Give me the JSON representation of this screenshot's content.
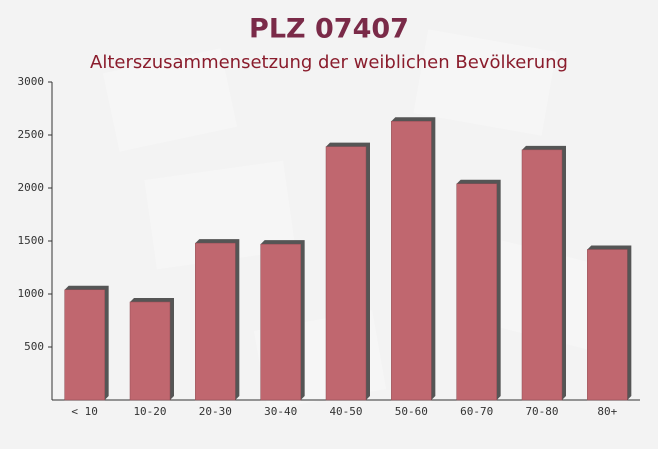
{
  "chart_data": {
    "type": "bar",
    "title": "PLZ 07407",
    "subtitle": "Alterszusammensetzung der weiblichen Bevölkerung",
    "categories": [
      "< 10",
      "10-20",
      "20-30",
      "30-40",
      "40-50",
      "50-60",
      "60-70",
      "70-80",
      "80+"
    ],
    "values": [
      1040,
      925,
      1480,
      1470,
      2390,
      2630,
      2040,
      2360,
      1420
    ],
    "color": "#c0676f",
    "ylim": [
      0,
      3000
    ],
    "yticks": [
      500,
      1000,
      1500,
      2000,
      2500,
      3000
    ],
    "grid": false
  }
}
